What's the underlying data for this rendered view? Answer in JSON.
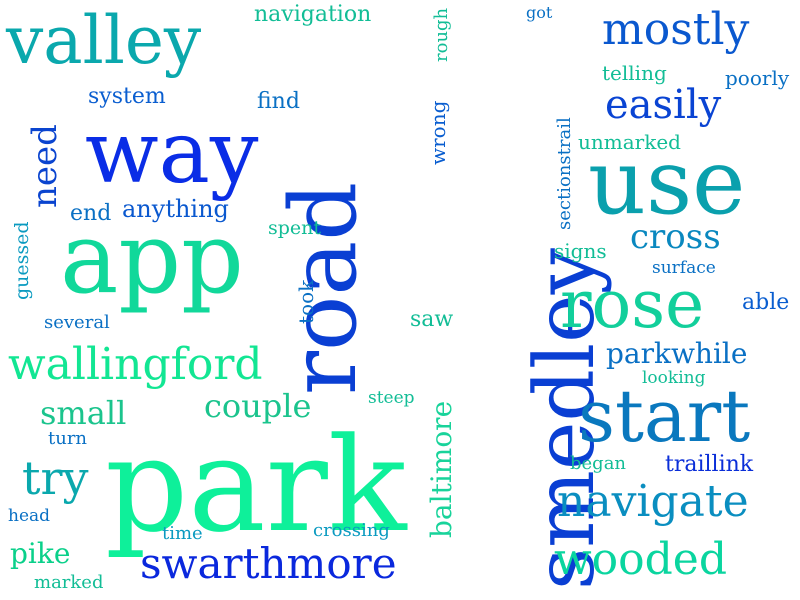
{
  "words": [
    {
      "text": "smedley",
      "color": "#0a3fd3"
    },
    {
      "text": "road",
      "color": "#0a3fd3"
    },
    {
      "text": "park",
      "color": "#0ef09a"
    },
    {
      "text": "way",
      "color": "#0a2de6"
    },
    {
      "text": "use",
      "color": "#0aa0ad"
    },
    {
      "text": "app",
      "color": "#11d89a"
    },
    {
      "text": "valley",
      "color": "#0aa8ad"
    },
    {
      "text": "start",
      "color": "#0a78be"
    },
    {
      "text": "rose",
      "color": "#12cf9b"
    },
    {
      "text": "wallingford",
      "color": "#12e693"
    },
    {
      "text": "swarthmore",
      "color": "#0a28dd"
    },
    {
      "text": "navigate",
      "color": "#0a8ec0"
    },
    {
      "text": "wooded",
      "color": "#0ad59f"
    },
    {
      "text": "mostly",
      "color": "#0a58cf"
    },
    {
      "text": "easily",
      "color": "#0a44d3"
    },
    {
      "text": "cross",
      "color": "#0a88bf"
    },
    {
      "text": "need",
      "color": "#0a44cf"
    },
    {
      "text": "try",
      "color": "#0aa8ad"
    },
    {
      "text": "couple",
      "color": "#1bc48d"
    },
    {
      "text": "small",
      "color": "#1bc48d"
    },
    {
      "text": "parkwhile",
      "color": "#0a70c4"
    },
    {
      "text": "baltimore",
      "color": "#18d39a"
    },
    {
      "text": "pike",
      "color": "#0ad08a"
    },
    {
      "text": "traillink",
      "color": "#0a2ed8"
    },
    {
      "text": "navigation",
      "color": "#12bd96"
    },
    {
      "text": "system",
      "color": "#0a5ed0"
    },
    {
      "text": "find",
      "color": "#0a70c4"
    },
    {
      "text": "anything",
      "color": "#0a58cf"
    },
    {
      "text": "end",
      "color": "#0a70c4"
    },
    {
      "text": "spent",
      "color": "#12bd96"
    },
    {
      "text": "guessed",
      "color": "#0a9ac0"
    },
    {
      "text": "several",
      "color": "#0a70c4"
    },
    {
      "text": "took",
      "color": "#0a70c4"
    },
    {
      "text": "saw",
      "color": "#12bd96"
    },
    {
      "text": "got",
      "color": "#0a70c4"
    },
    {
      "text": "rough",
      "color": "#12bd96"
    },
    {
      "text": "wrong",
      "color": "#0a5ed0"
    },
    {
      "text": "sectionstrail",
      "color": "#0a70c4"
    },
    {
      "text": "telling",
      "color": "#12bd96"
    },
    {
      "text": "poorly",
      "color": "#0a70c4"
    },
    {
      "text": "unmarked",
      "color": "#12bd96"
    },
    {
      "text": "signs",
      "color": "#12bd96"
    },
    {
      "text": "surface",
      "color": "#0a70c4"
    },
    {
      "text": "able",
      "color": "#0a5ed0"
    },
    {
      "text": "looking",
      "color": "#12bd96"
    },
    {
      "text": "steep",
      "color": "#12bd96"
    },
    {
      "text": "turn",
      "color": "#0a70c4"
    },
    {
      "text": "began",
      "color": "#12bd96"
    },
    {
      "text": "head",
      "color": "#0a70c4"
    },
    {
      "text": "time",
      "color": "#0a9ac0"
    },
    {
      "text": "crossing",
      "color": "#0a9ac0"
    },
    {
      "text": "marked",
      "color": "#12bd96"
    }
  ]
}
